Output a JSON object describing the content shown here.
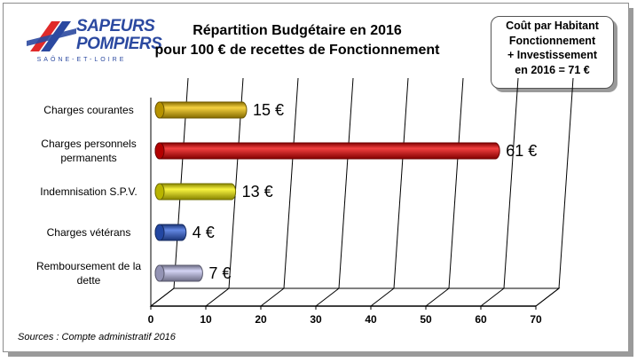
{
  "colors": {
    "charges_courantes": "#f2c200",
    "charges_personnels": "#ee0000",
    "indemnisation": "#f5f000",
    "charges_veterans": "#2f5fd8",
    "remboursement": "#c4c4f0",
    "logo_blue": "#2b49a0",
    "logo_red": "#e02a2a"
  },
  "logo": {
    "line1": "SAPEURS",
    "line2": "POMPIERS",
    "subline": "SAÔNE-ET-LOIRE"
  },
  "callout": {
    "lines": [
      "Coût par Habitant",
      "Fonctionnement",
      "+ Investissement",
      "en 2016 = 71 €"
    ]
  },
  "source": "Sources : Compte administratif 2016",
  "chart_data": {
    "type": "bar",
    "orientation": "horizontal",
    "title": "Répartition Budgétaire en 2016 pour 100 € de recettes de Fonctionnement",
    "title_lines": [
      "Répartition Budgétaire en 2016",
      "pour 100 € de recettes de Fonctionnement"
    ],
    "categories": [
      [
        "Charges courantes"
      ],
      [
        "Charges personnels",
        "permanents"
      ],
      [
        "Indemnisation S.P.V."
      ],
      [
        "Charges vétérans"
      ],
      [
        "Remboursement de la",
        "dette"
      ]
    ],
    "values": [
      15,
      61,
      13,
      4,
      7
    ],
    "data_labels": [
      "15 €",
      "61 €",
      "13 €",
      "4 €",
      "7 €"
    ],
    "bar_colors": [
      "#f2c200",
      "#ee0000",
      "#f5f000",
      "#2f5fd8",
      "#c4c4f0"
    ],
    "xlim": [
      0,
      70
    ],
    "xticks": [
      0,
      10,
      20,
      30,
      40,
      50,
      60,
      70
    ],
    "xtick_labels": [
      "0",
      "10",
      "20",
      "30",
      "40",
      "50",
      "60",
      "70"
    ],
    "xlabel": "",
    "ylabel": "",
    "grid": true,
    "style": "3d-cylinder"
  }
}
